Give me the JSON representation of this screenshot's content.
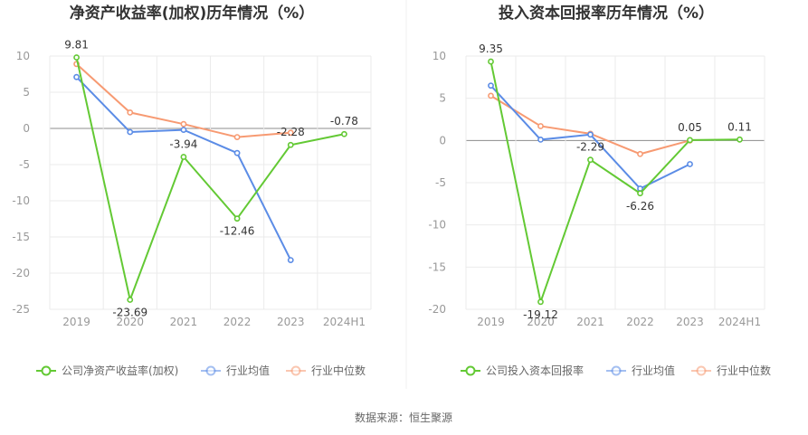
{
  "source": "数据来源：恒生聚源",
  "colors": {
    "company": "#63c934",
    "industry_avg": "#5b8ce6",
    "industry_median": "#f79a72",
    "grid": "#ebebeb",
    "axis": "#8c8c8c"
  },
  "chart_data": [
    {
      "type": "line",
      "title": "净资产收益率(加权)历年情况（%）",
      "categories": [
        "2019",
        "2020",
        "2021",
        "2022",
        "2023",
        "2024H1"
      ],
      "ylim": [
        -25,
        10
      ],
      "yticks": [
        10,
        5,
        0,
        -5,
        -10,
        -15,
        -20,
        -25
      ],
      "grid": true,
      "legend": "bottom",
      "series": [
        {
          "name": "公司净资产收益率(加权)",
          "color": "#63c934",
          "values": [
            9.81,
            -23.69,
            -3.94,
            -12.46,
            -2.28,
            -0.78
          ],
          "labels": [
            "9.81",
            "-23.69",
            "-3.94",
            "-12.46",
            "-2.28",
            "-0.78"
          ]
        },
        {
          "name": "行业均值",
          "color": "#5b8ce6",
          "values": [
            7.1,
            -0.5,
            -0.2,
            -3.4,
            -18.2,
            null
          ]
        },
        {
          "name": "行业中位数",
          "color": "#f79a72",
          "values": [
            8.9,
            2.2,
            0.6,
            -1.2,
            -0.6,
            null
          ]
        }
      ]
    },
    {
      "type": "line",
      "title": "投入资本回报率历年情况（%）",
      "categories": [
        "2019",
        "2020",
        "2021",
        "2022",
        "2023",
        "2024H1"
      ],
      "ylim": [
        -20,
        10
      ],
      "yticks": [
        10,
        5,
        0,
        -5,
        -10,
        -15,
        -20
      ],
      "grid": true,
      "legend": "bottom",
      "series": [
        {
          "name": "公司投入资本回报率",
          "color": "#63c934",
          "values": [
            9.35,
            -19.12,
            -2.29,
            -6.26,
            0.05,
            0.11
          ],
          "labels": [
            "9.35",
            "-19.12",
            "-2.29",
            "-6.26",
            "0.05",
            "0.11"
          ]
        },
        {
          "name": "行业均值",
          "color": "#5b8ce6",
          "values": [
            6.5,
            0.1,
            0.7,
            -5.7,
            -2.8,
            null
          ]
        },
        {
          "name": "行业中位数",
          "color": "#f79a72",
          "values": [
            5.3,
            1.7,
            0.8,
            -1.6,
            0.0,
            null
          ]
        }
      ]
    }
  ]
}
